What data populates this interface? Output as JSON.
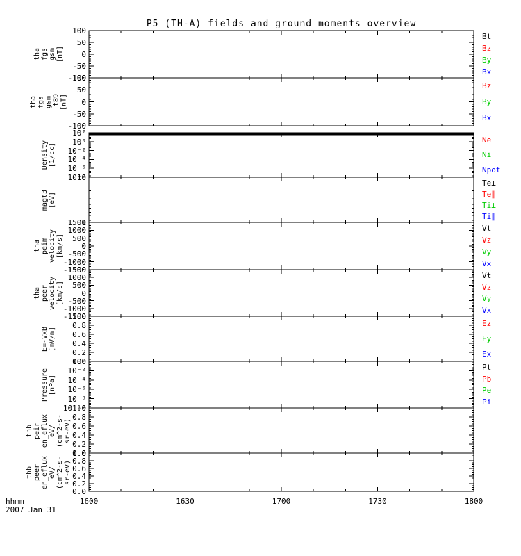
{
  "title": "P5 (TH-A) fields and ground moments overview",
  "colors": {
    "black": "#000000",
    "red": "#ff0000",
    "green": "#00cc00",
    "blue": "#0000ff",
    "frame": "#000000",
    "background": "#ffffff"
  },
  "footer": {
    "time_format_label": "hhmm",
    "date_label": "2007 Jan 31"
  },
  "chart_data": {
    "type": "multi-panel-line",
    "x_tick_labels": [
      "1600",
      "1630",
      "1700",
      "1730",
      "1800"
    ],
    "x_axis_format_label": "hhmm",
    "x_axis_date_label": "2007 Jan 31",
    "x_minor_ticks_per_interval": 2,
    "legend_position": "right",
    "grid": false,
    "panels": [
      {
        "id": "tha-fgs-gsm",
        "ylabel_lines": [
          "tha",
          "fgs",
          "gsm",
          "[nT]"
        ],
        "yticks": [
          "100",
          "50",
          "0",
          "-50",
          "-100"
        ],
        "yscale": "linear",
        "ylim": [
          -100,
          100
        ],
        "series": [
          {
            "name": "Bt",
            "color": "black",
            "values": []
          },
          {
            "name": "Bz",
            "color": "red",
            "values": []
          },
          {
            "name": "By",
            "color": "green",
            "values": []
          },
          {
            "name": "Bx",
            "color": "blue",
            "values": []
          }
        ]
      },
      {
        "id": "tha-fgs-gsm-t89",
        "ylabel_lines": [
          "tha",
          "fgs",
          "gsm",
          "-t89",
          "[nT]"
        ],
        "yticks": [
          "100",
          "50",
          "0",
          "-50",
          "-100"
        ],
        "yscale": "linear",
        "ylim": [
          -100,
          100
        ],
        "series": [
          {
            "name": "Bz",
            "color": "red",
            "values": []
          },
          {
            "name": "By",
            "color": "green",
            "values": []
          },
          {
            "name": "Bx",
            "color": "blue",
            "values": []
          }
        ]
      },
      {
        "id": "density",
        "ylabel_lines": [
          "Density",
          "[1/cc]"
        ],
        "yticks": [
          "10²",
          "10⁰",
          "10⁻²",
          "10⁻⁴",
          "10⁻⁶",
          "10⁻⁸"
        ],
        "yscale": "log",
        "ylim": [
          1e-08,
          100
        ],
        "series": [
          {
            "name": "Ne",
            "color": "red",
            "values": []
          },
          {
            "name": "Ni",
            "color": "green",
            "values": []
          },
          {
            "name": "Npot",
            "color": "blue",
            "values": []
          }
        ]
      },
      {
        "id": "magt3",
        "ylabel_lines": [
          "magt3",
          "[eV]"
        ],
        "yticks": [
          "10",
          "1"
        ],
        "yscale": "log",
        "ylim": [
          1,
          10
        ],
        "series": [
          {
            "name": "Te⊥",
            "color": "black",
            "values": []
          },
          {
            "name": "Te∥",
            "color": "red",
            "values": []
          },
          {
            "name": "Ti⊥",
            "color": "green",
            "values": []
          },
          {
            "name": "Ti∥",
            "color": "blue",
            "values": []
          }
        ]
      },
      {
        "id": "tha-peim-velocity",
        "ylabel_lines": [
          "tha",
          "peim",
          "velocity",
          "[km/s]"
        ],
        "yticks": [
          "1500",
          "1000",
          "500",
          "0",
          "-500",
          "-1000",
          "-1500"
        ],
        "yscale": "linear",
        "ylim": [
          -1500,
          1500
        ],
        "series": [
          {
            "name": "Vt",
            "color": "black",
            "values": []
          },
          {
            "name": "Vz",
            "color": "red",
            "values": []
          },
          {
            "name": "Vy",
            "color": "green",
            "values": []
          },
          {
            "name": "Vx",
            "color": "blue",
            "values": []
          }
        ]
      },
      {
        "id": "tha-peer-velocity",
        "ylabel_lines": [
          "tha",
          "peer",
          "velocity",
          "[km/s]"
        ],
        "yticks": [
          "1500",
          "1000",
          "500",
          "0",
          "-500",
          "-1000",
          "-1500"
        ],
        "yscale": "linear",
        "ylim": [
          -1500,
          1500
        ],
        "series": [
          {
            "name": "Vt",
            "color": "black",
            "values": []
          },
          {
            "name": "Vz",
            "color": "red",
            "values": []
          },
          {
            "name": "Vy",
            "color": "green",
            "values": []
          },
          {
            "name": "Vx",
            "color": "blue",
            "values": []
          }
        ]
      },
      {
        "id": "e-field",
        "ylabel_lines": [
          "E=-VxB",
          "[mV/m]"
        ],
        "yticks": [
          "1.0",
          "0.8",
          "0.6",
          "0.4",
          "0.2",
          "0.0"
        ],
        "yscale": "linear",
        "ylim": [
          0,
          1
        ],
        "series": [
          {
            "name": "Ez",
            "color": "red",
            "values": []
          },
          {
            "name": "Ey",
            "color": "green",
            "values": []
          },
          {
            "name": "Ex",
            "color": "blue",
            "values": []
          }
        ]
      },
      {
        "id": "pressure",
        "ylabel_lines": [
          "Pressure",
          "[nPa]"
        ],
        "yticks": [
          "10⁰",
          "10⁻²",
          "10⁻⁴",
          "10⁻⁶",
          "10⁻⁸",
          "10⁻¹⁰"
        ],
        "yscale": "log",
        "ylim": [
          1e-10,
          1
        ],
        "series": [
          {
            "name": "Pt",
            "color": "black",
            "values": []
          },
          {
            "name": "Pb",
            "color": "red",
            "values": []
          },
          {
            "name": "Pe",
            "color": "green",
            "values": []
          },
          {
            "name": "Pi",
            "color": "blue",
            "values": []
          }
        ]
      },
      {
        "id": "thb-peir-en-eflux",
        "ylabel_lines": [
          "thb",
          "peir",
          "en_eflux",
          "eV/",
          "(cm^2-s-",
          "sr-eV)"
        ],
        "yticks": [
          "1.0",
          "0.8",
          "0.6",
          "0.4",
          "0.2",
          "0.0"
        ],
        "yscale": "linear",
        "ylim": [
          0,
          1
        ],
        "series": []
      },
      {
        "id": "thb-peer-en-eflux",
        "ylabel_lines": [
          "thb",
          "peer",
          "en_eflux",
          "eV/",
          "(cm^2-s-",
          "sr-eV)"
        ],
        "yticks": [
          "1.0",
          "0.8",
          "0.6",
          "0.4",
          "0.2",
          "0.0"
        ],
        "yscale": "linear",
        "ylim": [
          0,
          1
        ],
        "series": []
      }
    ]
  }
}
